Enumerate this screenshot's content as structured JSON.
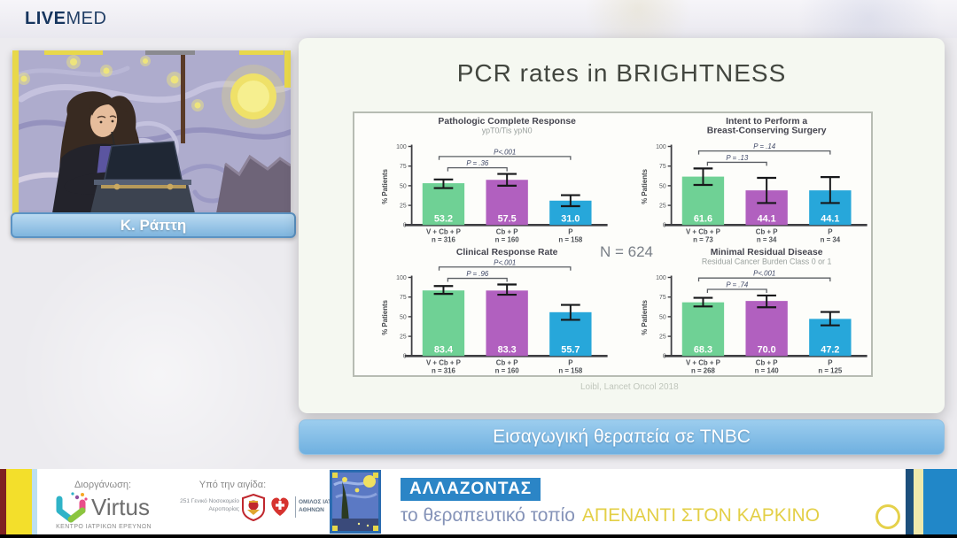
{
  "header": {
    "logo_live": "LIVE",
    "logo_med": "MED"
  },
  "speaker": {
    "name": "Κ. Ράπτη"
  },
  "slide": {
    "title": "PCR rates in BRIGHTNESS",
    "n_total": "N = 624",
    "citation": "Loibl, Lancet Oncol 2018",
    "session_title": "Εισαγωγική θεραπεία σε TNBC"
  },
  "colors": {
    "bar_green": "#6fd195",
    "bar_purple": "#b160bf",
    "bar_blue": "#27a7da",
    "accent_light_blue": "#7fb5de",
    "campaign_blue": "#2b85c6",
    "campaign_yellow": "#e3cf46",
    "logo_navy": "#16355e"
  },
  "chart_data": [
    {
      "type": "bar",
      "title_lines": [
        "Pathologic Complete Response"
      ],
      "subtitle": "ypT0/Tis ypN0",
      "ylabel": "% Patients",
      "ylim": [
        0,
        100
      ],
      "yticks": [
        0,
        25,
        50,
        75,
        100
      ],
      "categories": [
        "V + Cb + P",
        "Cb + P",
        "P"
      ],
      "n_labels": [
        "n = 316",
        "n = 160",
        "n = 158"
      ],
      "values": [
        53.2,
        57.5,
        31.0
      ],
      "value_labels": [
        "53.2",
        "57.5",
        "31.0"
      ],
      "error_low": [
        47,
        50,
        24
      ],
      "error_high": [
        58,
        65,
        38
      ],
      "p_inner": "P = .36",
      "p_outer": "P<.001"
    },
    {
      "type": "bar",
      "title_lines": [
        "Intent to Perform a",
        "Breast-Conserving Surgery"
      ],
      "subtitle": null,
      "ylabel": "% Patients",
      "ylim": [
        0,
        100
      ],
      "yticks": [
        0,
        25,
        50,
        75,
        100
      ],
      "categories": [
        "V + Cb + P",
        "Cb + P",
        "P"
      ],
      "n_labels": [
        "n = 73",
        "n = 34",
        "n = 34"
      ],
      "values": [
        61.6,
        44.1,
        44.1
      ],
      "value_labels": [
        "61.6",
        "44.1",
        "44.1"
      ],
      "error_low": [
        51,
        28,
        28
      ],
      "error_high": [
        72,
        60,
        61
      ],
      "p_inner": "P = .13",
      "p_outer": "P = .14"
    },
    {
      "type": "bar",
      "title_lines": [
        "Clinical Response Rate"
      ],
      "subtitle": null,
      "ylabel": "% Patients",
      "ylim": [
        0,
        100
      ],
      "yticks": [
        0,
        25,
        50,
        75,
        100
      ],
      "categories": [
        "V + Cb + P",
        "Cb + P",
        "P"
      ],
      "n_labels": [
        "n = 316",
        "n = 160",
        "n = 158"
      ],
      "values": [
        83.4,
        83.3,
        55.7
      ],
      "value_labels": [
        "83.4",
        "83.3",
        "55.7"
      ],
      "error_low": [
        79,
        78,
        46
      ],
      "error_high": [
        89,
        91,
        65
      ],
      "p_inner": "P = .96",
      "p_outer": "P<.001"
    },
    {
      "type": "bar",
      "title_lines": [
        "Minimal Residual Disease"
      ],
      "subtitle": "Residual Cancer Burden Class 0 or 1",
      "ylabel": "% Patients",
      "ylim": [
        0,
        100
      ],
      "yticks": [
        0,
        25,
        50,
        75,
        100
      ],
      "categories": [
        "V + Cb + P",
        "Cb + P",
        "P"
      ],
      "n_labels": [
        "n = 268",
        "n = 140",
        "n = 125"
      ],
      "values": [
        68.3,
        70.0,
        47.2
      ],
      "value_labels": [
        "68.3",
        "70.0",
        "47.2"
      ],
      "error_low": [
        63,
        62,
        39
      ],
      "error_high": [
        74,
        77,
        56
      ],
      "p_inner": "P = .74",
      "p_outer": "P<.001"
    }
  ],
  "bottom_banner": {
    "organizer_label": "Διοργάνωση:",
    "virtus_name": "Virtus",
    "virtus_sub": "ΚΕΝΤΡΟ ΙΑΤΡΙΚΩΝ ΕΡΕΥΝΩΝ",
    "auspices_label": "Υπό την αιγίδα:",
    "hospital_line1": "251 Γενικό Νοσοκομείο",
    "hospital_line2": "Αεροπορίας",
    "club_line1": "ΟΜΙΛΟΣ ΙΑΤΡΙΚΟΥ",
    "club_line2": "ΑΘΗΝΩΝ",
    "campaign_title": "ΑΛΛΑΖΟΝΤΑΣ",
    "campaign_sub_plain": "το θεραπευτικό τοπίο",
    "campaign_sub_highlight": "ΑΠΕΝΑΝΤΙ ΣΤΟΝ ΚΑΡΚΙΝΟ"
  }
}
